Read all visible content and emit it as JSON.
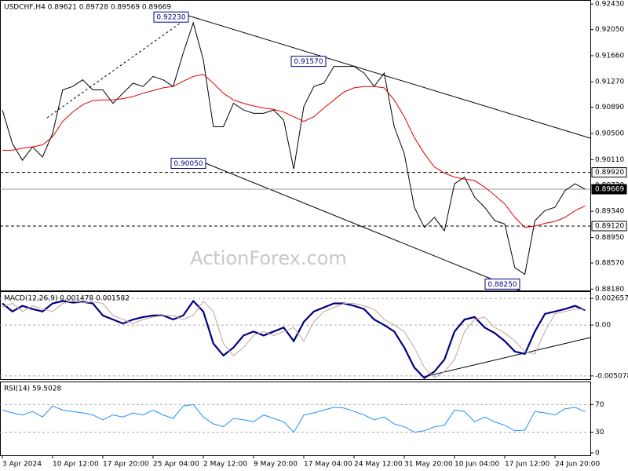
{
  "chart_data": [
    {
      "type": "line",
      "title": "USDCHF,H4 0.89621 0.89728 0.89569 0.89669",
      "watermark": "ActionForex.com",
      "ylim": [
        0.8816,
        0.9249
      ],
      "yticks": [
        {
          "value": 0.9243,
          "label": "0.92430"
        },
        {
          "value": 0.9205,
          "label": "0.92050"
        },
        {
          "value": 0.9166,
          "label": "0.91660"
        },
        {
          "value": 0.9127,
          "label": "0.91270"
        },
        {
          "value": 0.9089,
          "label": "0.90890"
        },
        {
          "value": 0.905,
          "label": "0.90500"
        },
        {
          "value": 0.9011,
          "label": "0.90110"
        },
        {
          "value": 0.8973,
          "label": "0.89730"
        },
        {
          "value": 0.8934,
          "label": "0.89340"
        },
        {
          "value": 0.8895,
          "label": "0.88950"
        },
        {
          "value": 0.8857,
          "label": "0.88570"
        },
        {
          "value": 0.8818,
          "label": "0.88180"
        }
      ],
      "levels": [
        {
          "value": 0.8992,
          "label": "0.89920",
          "style": "dashed"
        },
        {
          "value": 0.8912,
          "label": "0.89120",
          "style": "dashed"
        },
        {
          "value": 0.89669,
          "label": "0.89669",
          "style": "current"
        }
      ],
      "annotations": [
        {
          "value": 0.9223,
          "label": "0.92230"
        },
        {
          "value": 0.9157,
          "label": "0.91570"
        },
        {
          "value": 0.9005,
          "label": "0.90050"
        },
        {
          "value": 0.8825,
          "label": "0.88250"
        }
      ],
      "series": [
        {
          "name": "USDCHF",
          "color": "#000000",
          "values": [
            0.9085,
            0.9035,
            0.901,
            0.903,
            0.9015,
            0.905,
            0.9115,
            0.912,
            0.913,
            0.9115,
            0.9115,
            0.9095,
            0.911,
            0.9125,
            0.912,
            0.9135,
            0.913,
            0.912,
            0.917,
            0.9215,
            0.916,
            0.906,
            0.906,
            0.9095,
            0.9085,
            0.908,
            0.908,
            0.9085,
            0.907,
            0.8997,
            0.909,
            0.912,
            0.9125,
            0.915,
            0.915,
            0.915,
            0.914,
            0.912,
            0.914,
            0.906,
            0.902,
            0.894,
            0.891,
            0.8925,
            0.8905,
            0.8975,
            0.8985,
            0.8955,
            0.894,
            0.892,
            0.8915,
            0.885,
            0.884,
            0.892,
            0.8935,
            0.894,
            0.8965,
            0.8975,
            0.89669
          ]
        },
        {
          "name": "MA",
          "color": "#e00000",
          "values": [
            0.9025,
            0.9025,
            0.9028,
            0.903,
            0.9033,
            0.9045,
            0.9068,
            0.9082,
            0.9093,
            0.9099,
            0.91,
            0.91,
            0.9102,
            0.9105,
            0.911,
            0.9114,
            0.9118,
            0.912,
            0.9128,
            0.9135,
            0.9138,
            0.9125,
            0.911,
            0.91,
            0.9095,
            0.9091,
            0.9088,
            0.9086,
            0.9082,
            0.9075,
            0.9068,
            0.9075,
            0.9088,
            0.91,
            0.9112,
            0.9118,
            0.912,
            0.912,
            0.9118,
            0.91,
            0.9075,
            0.9044,
            0.902,
            0.9,
            0.8991,
            0.8985,
            0.8982,
            0.898,
            0.897,
            0.8958,
            0.8945,
            0.8925,
            0.891,
            0.8912,
            0.8916,
            0.8919,
            0.8925,
            0.8935,
            0.8942
          ]
        }
      ]
    },
    {
      "type": "line",
      "title": "MACD(12,26,9) 0.001478 0.001582",
      "ylim": [
        -0.0054,
        0.0033
      ],
      "yticks": [
        0.002657,
        {
          "value": 0,
          "label": "0.00"
        },
        -0.005078
      ],
      "series": [
        {
          "name": "MACD",
          "color": "#00007f",
          "values": [
            0.00216,
            0.00136,
            0.00192,
            0.0016,
            0.00136,
            0.00216,
            0.0024,
            0.00224,
            0.00232,
            0.00216,
            0.00096,
            0.00056,
            0.00016,
            0.00056,
            0.0008,
            0.00096,
            0.00096,
            0.00056,
            0.00096,
            0.0024,
            0.00136,
            -0.00184,
            -0.00304,
            -0.00224,
            -0.00104,
            -0.00064,
            -0.00104,
            -0.00064,
            -0.00024,
            -0.0016,
            0.00032,
            0.00136,
            0.00176,
            0.00216,
            0.00216,
            0.00192,
            0.0016,
            0.00056,
            0,
            -0.00064,
            -0.00224,
            -0.00424,
            -0.00528,
            -0.00464,
            -0.00344,
            -0.00064,
            0.00056,
            0.0008,
            -0.00024,
            -0.0008,
            -0.0016,
            -0.00264,
            -0.00288,
            -0.00064,
            0.00112,
            0.00136,
            0.0016,
            0.00192,
            0.001478
          ]
        },
        {
          "name": "Signal",
          "color": "#c8a0a0",
          "values": [
            0.0018,
            0.00216,
            0.00136,
            0.00192,
            0.0016,
            0.00136,
            0.00216,
            0.0024,
            0.00224,
            0.00232,
            0.00216,
            0.00096,
            0.00056,
            0.00016,
            0.00056,
            0.0008,
            0.00096,
            0.00096,
            0.00056,
            0.00096,
            0.0024,
            0.00136,
            -0.00184,
            -0.00304,
            -0.00224,
            -0.00104,
            -0.00064,
            -0.00104,
            -0.00064,
            -0.00024,
            -0.0016,
            0.00032,
            0.00136,
            0.00176,
            0.00216,
            0.00216,
            0.00192,
            0.0016,
            0.00056,
            0,
            -0.00064,
            -0.00224,
            -0.00424,
            -0.00528,
            -0.00464,
            -0.00344,
            -0.00064,
            0.00056,
            0.0008,
            -0.00024,
            -0.0008,
            -0.0016,
            -0.00264,
            -0.00288,
            -0.00064,
            0.00112,
            0.00136,
            0.0016,
            0.001582
          ]
        }
      ]
    },
    {
      "type": "line",
      "title": "RSI(14) 59.5028",
      "ylim": [
        0,
        100
      ],
      "yticks": [
        70,
        30,
        0
      ],
      "categories": [
        "3 Apr 2024",
        null,
        null,
        null,
        null,
        "10 Apr 12:00",
        null,
        null,
        null,
        null,
        "17 Apr 20:00",
        null,
        null,
        null,
        null,
        "25 Apr 04:00",
        null,
        null,
        null,
        null,
        "2 May 12:00",
        null,
        null,
        null,
        null,
        "9 May 20:00",
        null,
        null,
        null,
        null,
        "17 May 04:00",
        null,
        null,
        null,
        null,
        "24 May 12:00",
        null,
        null,
        null,
        null,
        "31 May 20:00",
        null,
        null,
        null,
        null,
        "10 Jun 04:00",
        null,
        null,
        null,
        null,
        "17 Jun 12:00",
        null,
        null,
        null,
        null,
        "24 Jun 20:00",
        null,
        null,
        null
      ],
      "series": [
        {
          "name": "RSI",
          "color": "#1e90ff",
          "values": [
            62,
            58,
            55,
            60,
            52,
            68,
            62,
            60,
            58,
            55,
            48,
            55,
            52,
            58,
            55,
            62,
            55,
            50,
            68,
            70,
            52,
            42,
            38,
            50,
            48,
            45,
            55,
            50,
            45,
            30,
            55,
            58,
            62,
            66,
            65,
            60,
            55,
            48,
            52,
            42,
            38,
            30,
            32,
            38,
            40,
            62,
            60,
            45,
            52,
            45,
            40,
            32,
            33,
            60,
            58,
            55,
            64,
            66,
            59.5028
          ]
        }
      ]
    }
  ]
}
